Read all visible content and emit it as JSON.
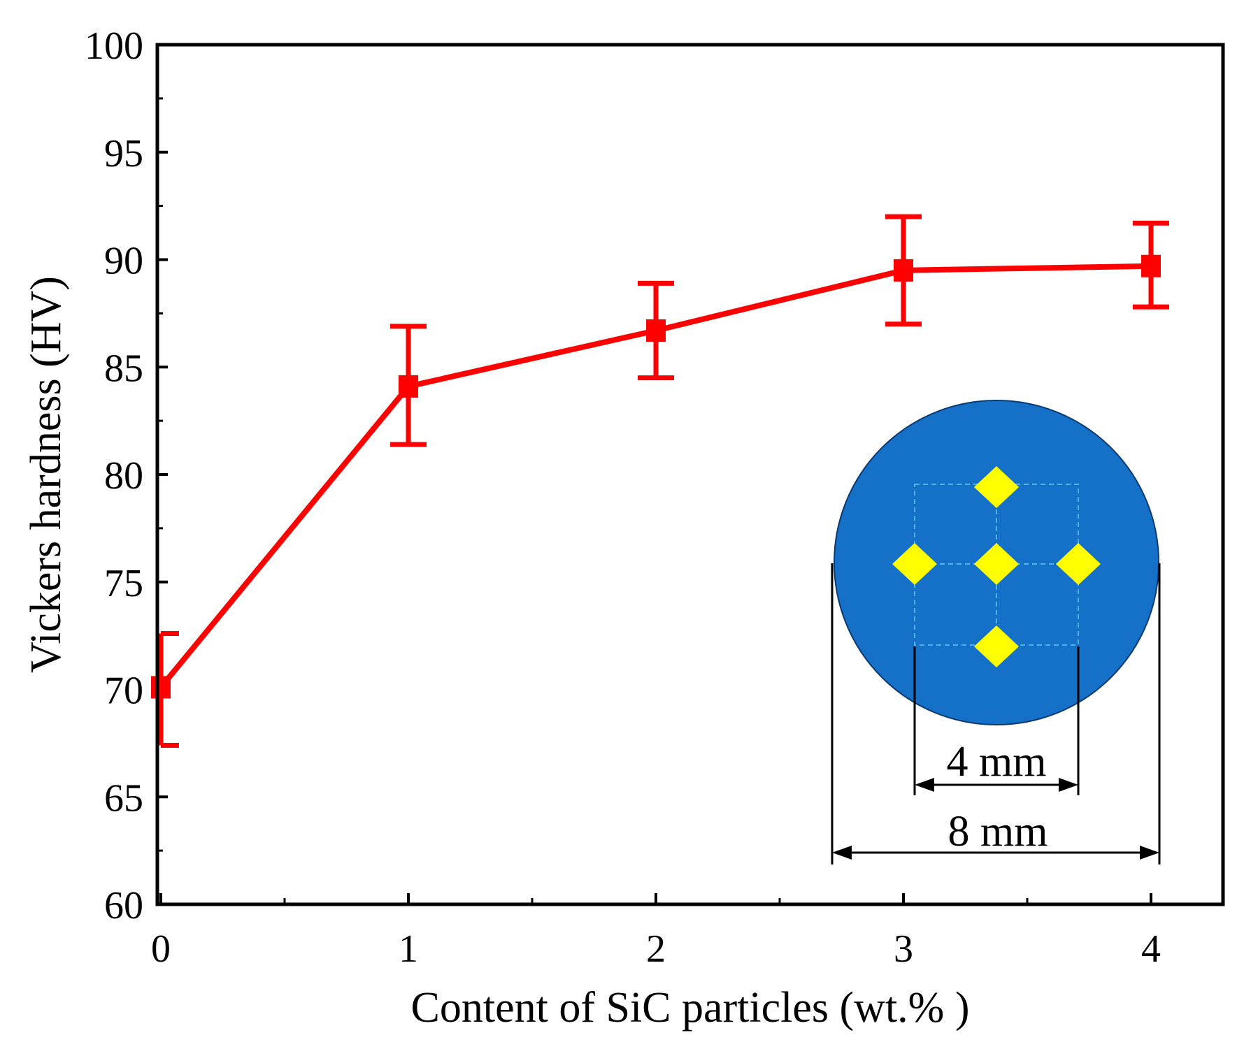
{
  "chart_data": {
    "type": "line",
    "title": "",
    "xlabel": "Content of SiC particles (wt.% )",
    "ylabel": "Vickers hardness (HV)",
    "xlim": [
      0,
      4.3
    ],
    "ylim": [
      60,
      100
    ],
    "xticks": [
      0,
      1,
      2,
      3,
      4
    ],
    "xtick_labels": [
      "0",
      "1",
      "2",
      "3",
      "4"
    ],
    "yticks": [
      60,
      65,
      70,
      75,
      80,
      85,
      90,
      95,
      100
    ],
    "ytick_labels": [
      "60",
      "65",
      "70",
      "75",
      "80",
      "85",
      "90",
      "95",
      "100"
    ],
    "grid": false,
    "series": [
      {
        "name": "Vickers hardness",
        "color": "#ff0000",
        "marker": "square",
        "x": [
          0,
          1,
          2,
          3,
          4
        ],
        "y": [
          70.1,
          84.1,
          86.7,
          89.5,
          89.7
        ],
        "err_low": [
          67.4,
          81.4,
          84.5,
          87.0,
          87.8
        ],
        "err_high": [
          72.6,
          86.9,
          88.9,
          92.0,
          91.7
        ]
      }
    ],
    "inset": {
      "description": "indentation layout",
      "disc_color": "#1570c7",
      "indent_color": "#ffff00",
      "inner_dimension_label": "4 mm",
      "outer_dimension_label": "8 mm"
    }
  }
}
